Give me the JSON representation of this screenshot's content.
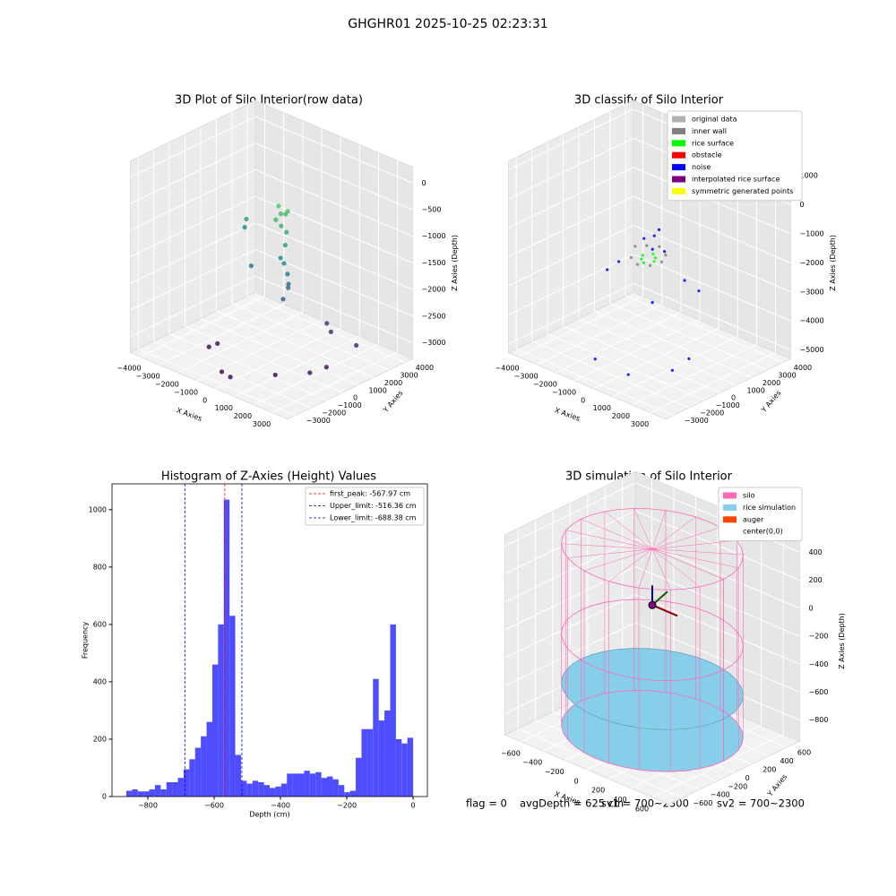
{
  "title": "GHGHR01 2025-10-25 02:23:31",
  "chart_data": [
    {
      "type": "scatter3d",
      "title": "3D Plot of Silo Interior(row data)",
      "xlabel": "X Axies",
      "ylabel": "Y Axies",
      "zlabel": "Z Axies (Depth)",
      "xlim": [
        -4500,
        3800
      ],
      "ylim": [
        -3500,
        4500
      ],
      "zlim": [
        -3300,
        300
      ],
      "xticks": [
        {
          "value": -4000,
          "label": "−4000"
        },
        {
          "value": -3000,
          "label": "−3000"
        },
        {
          "value": -2000,
          "label": "−2000"
        },
        {
          "value": -1000,
          "label": "−1000"
        },
        0,
        1000,
        2000,
        3000
      ],
      "yticks": [
        {
          "value": -3000,
          "label": "−3000"
        },
        {
          "value": -2000,
          "label": "−2000"
        },
        {
          "value": -1000,
          "label": "−1000"
        },
        0,
        1000,
        2000,
        3000,
        4000
      ],
      "zticks": [
        {
          "value": -3000,
          "label": "−3000"
        },
        {
          "value": -2500,
          "label": "−2500"
        },
        {
          "value": -2000,
          "label": "−2000"
        },
        {
          "value": -1500,
          "label": "−1500"
        },
        {
          "value": -1000,
          "label": "−1000"
        },
        {
          "value": -500,
          "label": "−500"
        },
        0
      ],
      "colormap": "viridis",
      "series": [
        {
          "x": [
            -800,
            -600,
            -400,
            -700,
            -500,
            -300,
            -600,
            -200,
            -100,
            0,
            200,
            100,
            300,
            -200,
            -2500,
            -3000,
            -1500,
            1500,
            1800,
            -2000,
            -1800,
            -500,
            200,
            1500,
            2500,
            2800,
            3300
          ],
          "y": [
            1500,
            1400,
            1600,
            1200,
            1300,
            1400,
            1700,
            1200,
            1000,
            1100,
            900,
            700,
            800,
            900,
            1500,
            2000,
            600,
            1800,
            1700,
            -1500,
            -1200,
            -2500,
            -2800,
            -1500,
            -500,
            200,
            1500
          ],
          "z": [
            -700,
            -800,
            -750,
            -900,
            -1000,
            -1100,
            -850,
            -1300,
            -1600,
            -1800,
            -2000,
            -2200,
            -1900,
            -1500,
            -1200,
            -1500,
            -1800,
            -2600,
            -2700,
            -3100,
            -3050,
            -3200,
            -3150,
            -3100,
            -3050,
            -3000,
            -2700
          ]
        }
      ]
    },
    {
      "type": "scatter3d",
      "title": "3D classify of Silo Interior",
      "xlabel": "X Axies",
      "ylabel": "Y Axies",
      "zlabel": "Z Axies (Depth)",
      "xlim": [
        -4500,
        3800
      ],
      "ylim": [
        -3500,
        4500
      ],
      "zlim": [
        -5300,
        1300
      ],
      "xticks": [
        {
          "value": -4000,
          "label": "−4000"
        },
        {
          "value": -3000,
          "label": "−3000"
        },
        {
          "value": -2000,
          "label": "−2000"
        },
        {
          "value": -1000,
          "label": "−1000"
        },
        0,
        1000,
        2000,
        3000
      ],
      "yticks": [
        {
          "value": -3000,
          "label": "−3000"
        },
        {
          "value": -2000,
          "label": "−2000"
        },
        {
          "value": -1000,
          "label": "−1000"
        },
        0,
        1000,
        2000,
        3000,
        4000
      ],
      "zticks": [
        {
          "value": -5000,
          "label": "−5000"
        },
        {
          "value": -4000,
          "label": "−4000"
        },
        {
          "value": -3000,
          "label": "−3000"
        },
        {
          "value": -2000,
          "label": "−2000"
        },
        {
          "value": -1000,
          "label": "−1000"
        },
        0,
        1000
      ],
      "series": [
        {
          "name": "original data",
          "color": "#b0b0b0",
          "x": [],
          "y": [],
          "z": []
        },
        {
          "name": "inner wall",
          "color": "#808080",
          "x": [
            -700,
            -500,
            0,
            500,
            700,
            500,
            0,
            -500
          ],
          "y": [
            0,
            500,
            700,
            500,
            0,
            -500,
            -700,
            -500
          ],
          "z": [
            -1500,
            -1550,
            -1500,
            -1600,
            -1650,
            -1700,
            -1750,
            -1700
          ]
        },
        {
          "name": "rice surface",
          "color": "#00ff00",
          "x": [
            -300,
            0,
            300,
            0,
            200,
            -200
          ],
          "y": [
            0,
            300,
            0,
            -300,
            200,
            -200
          ],
          "z": [
            -1700,
            -1650,
            -1750,
            -1800,
            -1700,
            -1750
          ]
        },
        {
          "name": "obstacle",
          "color": "#ff0000",
          "x": [],
          "y": [],
          "z": []
        },
        {
          "name": "noise",
          "color": "#0000ff",
          "x": [
            -400,
            300,
            -100,
            600,
            1500,
            1200,
            -2800,
            -3000,
            2500,
            2800,
            1000,
            -500,
            2000,
            -1500
          ],
          "y": [
            200,
            -100,
            500,
            300,
            500,
            -1200,
            1500,
            1000,
            -1500,
            -800,
            -2500,
            -2800,
            800,
            2500
          ],
          "z": [
            -1200,
            -1300,
            -1100,
            -1400,
            -2200,
            -2600,
            -3000,
            -3200,
            -4500,
            -4200,
            -4800,
            -4600,
            -2500,
            -1800
          ]
        },
        {
          "name": "interpolated rice surface",
          "color": "#800080",
          "x": [],
          "y": [],
          "z": []
        },
        {
          "name": "symmetric generated points",
          "color": "#ffff00",
          "x": [],
          "y": [],
          "z": []
        }
      ]
    },
    {
      "type": "histogram",
      "title": "Histogram of Z-Axies (Height) Values",
      "xlabel": "Depth (cm)",
      "ylabel": "Frequency",
      "color": "#4444ff",
      "bins": [
        -865,
        -847.7,
        -830.4,
        -813.1,
        -795.8,
        -778.5,
        -761.2,
        -743.9,
        -726.6,
        -709.3,
        -692,
        -674.7,
        -657.4,
        -640.1,
        -622.8,
        -605.5,
        -588.2,
        -570.9,
        -553.6,
        -536.3,
        -519,
        -501.7,
        -484.4,
        -467.1,
        -449.8,
        -432.5,
        -415.2,
        -397.9,
        -380.6,
        -363.3,
        -346,
        -328.7,
        -311.4,
        -294.1,
        -276.8,
        -259.5,
        -242.2,
        -224.9,
        -207.6,
        -190.3,
        -173,
        -155.7,
        -138.4,
        -121.1,
        -103.8,
        -86.5,
        -69.2,
        -51.9,
        -34.6,
        -17.3,
        0
      ],
      "values": [
        20,
        25,
        18,
        18,
        25,
        40,
        25,
        50,
        50,
        65,
        95,
        130,
        170,
        210,
        260,
        460,
        600,
        1035,
        630,
        145,
        55,
        45,
        55,
        50,
        40,
        30,
        35,
        45,
        80,
        80,
        80,
        90,
        80,
        85,
        65,
        70,
        60,
        40,
        15,
        20,
        135,
        235,
        235,
        410,
        265,
        300,
        600,
        200,
        185,
        205
      ],
      "xlim": [
        -908,
        43
      ],
      "ylim": [
        0,
        1090
      ],
      "xticks": [
        {
          "value": -800,
          "label": "−800"
        },
        {
          "value": -600,
          "label": "−600"
        },
        {
          "value": -400,
          "label": "−400"
        },
        {
          "value": -200,
          "label": "−200"
        },
        0
      ],
      "yticks": [
        0,
        200,
        400,
        600,
        800,
        1000
      ],
      "vlines": [
        {
          "value": -567.97,
          "label": "first_peak: -567.97 cm",
          "color": "#ff0000"
        },
        {
          "value": -516.36,
          "label": "Upper_limit: -516.36 cm",
          "color": "#0000cc"
        },
        {
          "value": -688.38,
          "label": "Lower_limit: -688.38 cm",
          "color": "#0000cc"
        }
      ]
    },
    {
      "type": "surface3d",
      "title": "3D simulation of Silo Interior",
      "xlabel": "X Axies",
      "ylabel": "Y Axies",
      "zlabel": "Z Axies (Depth)",
      "xlim": [
        -750,
        750
      ],
      "ylim": [
        -750,
        750
      ],
      "zlim": [
        -950,
        480
      ],
      "xticks": [
        {
          "value": -600,
          "label": "−600"
        },
        {
          "value": -400,
          "label": "−400"
        },
        {
          "value": -200,
          "label": "−200"
        },
        0,
        200,
        400,
        600
      ],
      "yticks": [
        {
          "value": -600,
          "label": "−600"
        },
        {
          "value": -400,
          "label": "−400"
        },
        {
          "value": -200,
          "label": "−200"
        },
        0,
        200,
        400,
        600
      ],
      "zticks": [
        {
          "value": -800,
          "label": "−800"
        },
        {
          "value": -600,
          "label": "−600"
        },
        {
          "value": -400,
          "label": "−400"
        },
        {
          "value": -200,
          "label": "−200"
        },
        0,
        200,
        400
      ],
      "series": [
        {
          "name": "silo",
          "color": "#ff69b4",
          "radius": 650,
          "zlim": [
            -900,
            400
          ]
        },
        {
          "name": "rice simulation",
          "color": "#87ceeb",
          "radius": 650,
          "z": -600
        },
        {
          "name": "auger",
          "color": "#ff4500"
        },
        {
          "name": "center(0,0)"
        }
      ]
    }
  ],
  "footer": {
    "flag": "flag = 0",
    "avg_depth": "avgDepth = 625 cm",
    "sv1": "sv1 = 700~2300",
    "sv2": "sv2 = 700~2300"
  }
}
